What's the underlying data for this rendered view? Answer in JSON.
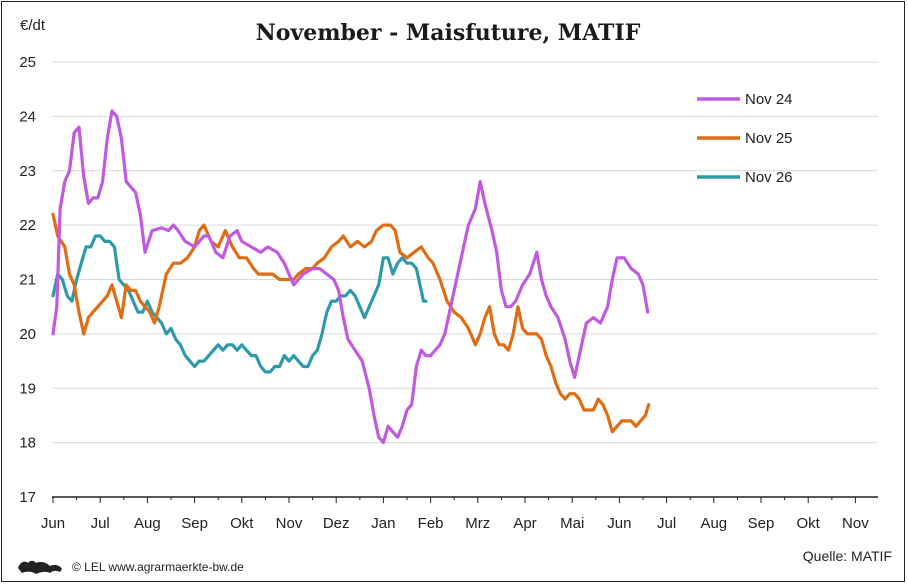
{
  "chart_data": {
    "type": "line",
    "title": "November - Maisfuture, MATIF",
    "unit_label": "€/dt",
    "ylim": [
      17,
      25
    ],
    "y_ticks": [
      17,
      18,
      19,
      20,
      21,
      22,
      23,
      24,
      25
    ],
    "x_tick_labels": [
      "Jun",
      "Jul",
      "Aug",
      "Sep",
      "Okt",
      "Nov",
      "Dez",
      "Jan",
      "Feb",
      "Mrz",
      "Apr",
      "Mai",
      "Jun",
      "Jul",
      "Aug",
      "Sep",
      "Okt",
      "Nov"
    ],
    "grid": true,
    "legend_position": "top-right",
    "series": [
      {
        "name": "Nov 24",
        "color": "#c05ae0",
        "points": [
          [
            0,
            20.0
          ],
          [
            0.08,
            20.5
          ],
          [
            0.15,
            22.3
          ],
          [
            0.25,
            22.8
          ],
          [
            0.35,
            23.0
          ],
          [
            0.45,
            23.7
          ],
          [
            0.55,
            23.8
          ],
          [
            0.65,
            22.9
          ],
          [
            0.75,
            22.4
          ],
          [
            0.85,
            22.5
          ],
          [
            0.95,
            22.5
          ],
          [
            1.05,
            22.8
          ],
          [
            1.15,
            23.6
          ],
          [
            1.25,
            24.1
          ],
          [
            1.35,
            24.0
          ],
          [
            1.45,
            23.6
          ],
          [
            1.55,
            22.8
          ],
          [
            1.65,
            22.7
          ],
          [
            1.75,
            22.6
          ],
          [
            1.85,
            22.2
          ],
          [
            1.95,
            21.5
          ],
          [
            2.1,
            21.9
          ],
          [
            2.3,
            21.95
          ],
          [
            2.45,
            21.9
          ],
          [
            2.55,
            22.0
          ],
          [
            2.65,
            21.9
          ],
          [
            2.8,
            21.7
          ],
          [
            3.0,
            21.6
          ],
          [
            3.2,
            21.8
          ],
          [
            3.3,
            21.8
          ],
          [
            3.45,
            21.5
          ],
          [
            3.6,
            21.4
          ],
          [
            3.75,
            21.8
          ],
          [
            3.9,
            21.9
          ],
          [
            4.0,
            21.7
          ],
          [
            4.2,
            21.6
          ],
          [
            4.4,
            21.5
          ],
          [
            4.55,
            21.6
          ],
          [
            4.75,
            21.5
          ],
          [
            4.9,
            21.3
          ],
          [
            5.0,
            21.1
          ],
          [
            5.1,
            20.9
          ],
          [
            5.3,
            21.1
          ],
          [
            5.5,
            21.2
          ],
          [
            5.65,
            21.2
          ],
          [
            5.8,
            21.1
          ],
          [
            5.95,
            21.0
          ],
          [
            6.05,
            20.8
          ],
          [
            6.15,
            20.3
          ],
          [
            6.25,
            19.9
          ],
          [
            6.4,
            19.7
          ],
          [
            6.55,
            19.5
          ],
          [
            6.7,
            19.0
          ],
          [
            6.8,
            18.5
          ],
          [
            6.9,
            18.1
          ],
          [
            7.0,
            18.0
          ],
          [
            7.1,
            18.3
          ],
          [
            7.2,
            18.2
          ],
          [
            7.3,
            18.1
          ],
          [
            7.4,
            18.3
          ],
          [
            7.5,
            18.6
          ],
          [
            7.6,
            18.7
          ],
          [
            7.7,
            19.4
          ],
          [
            7.8,
            19.7
          ],
          [
            7.9,
            19.6
          ],
          [
            8.0,
            19.6
          ],
          [
            8.1,
            19.7
          ],
          [
            8.2,
            19.8
          ],
          [
            8.3,
            20.0
          ],
          [
            8.4,
            20.4
          ],
          [
            8.5,
            20.8
          ],
          [
            8.6,
            21.2
          ],
          [
            8.7,
            21.6
          ],
          [
            8.8,
            22.0
          ],
          [
            8.95,
            22.3
          ],
          [
            9.05,
            22.8
          ],
          [
            9.15,
            22.4
          ],
          [
            9.3,
            21.9
          ],
          [
            9.4,
            21.5
          ],
          [
            9.5,
            20.8
          ],
          [
            9.6,
            20.5
          ],
          [
            9.7,
            20.5
          ],
          [
            9.8,
            20.6
          ],
          [
            9.95,
            20.9
          ],
          [
            10.1,
            21.1
          ],
          [
            10.25,
            21.5
          ],
          [
            10.35,
            21.0
          ],
          [
            10.45,
            20.7
          ],
          [
            10.55,
            20.5
          ],
          [
            10.7,
            20.3
          ],
          [
            10.85,
            19.9
          ],
          [
            10.95,
            19.5
          ],
          [
            11.05,
            19.2
          ],
          [
            11.2,
            19.8
          ],
          [
            11.3,
            20.2
          ],
          [
            11.45,
            20.3
          ],
          [
            11.6,
            20.2
          ],
          [
            11.75,
            20.5
          ],
          [
            11.85,
            21.0
          ],
          [
            11.95,
            21.4
          ],
          [
            12.1,
            21.4
          ],
          [
            12.25,
            21.2
          ],
          [
            12.4,
            21.1
          ],
          [
            12.5,
            20.9
          ],
          [
            12.6,
            20.4
          ]
        ]
      },
      {
        "name": "Nov 25",
        "color": "#e06c14",
        "points": [
          [
            0,
            22.2
          ],
          [
            0.1,
            21.8
          ],
          [
            0.25,
            21.6
          ],
          [
            0.35,
            21.1
          ],
          [
            0.45,
            20.9
          ],
          [
            0.55,
            20.4
          ],
          [
            0.65,
            20.0
          ],
          [
            0.75,
            20.3
          ],
          [
            0.85,
            20.4
          ],
          [
            0.95,
            20.5
          ],
          [
            1.05,
            20.6
          ],
          [
            1.15,
            20.7
          ],
          [
            1.25,
            20.9
          ],
          [
            1.35,
            20.6
          ],
          [
            1.45,
            20.3
          ],
          [
            1.55,
            20.9
          ],
          [
            1.65,
            20.8
          ],
          [
            1.75,
            20.8
          ],
          [
            1.85,
            20.6
          ],
          [
            1.95,
            20.5
          ],
          [
            2.05,
            20.4
          ],
          [
            2.15,
            20.2
          ],
          [
            2.25,
            20.5
          ],
          [
            2.4,
            21.1
          ],
          [
            2.55,
            21.3
          ],
          [
            2.7,
            21.3
          ],
          [
            2.85,
            21.4
          ],
          [
            3.0,
            21.6
          ],
          [
            3.1,
            21.9
          ],
          [
            3.2,
            22.0
          ],
          [
            3.35,
            21.7
          ],
          [
            3.5,
            21.6
          ],
          [
            3.65,
            21.9
          ],
          [
            3.8,
            21.6
          ],
          [
            3.95,
            21.4
          ],
          [
            4.1,
            21.4
          ],
          [
            4.25,
            21.2
          ],
          [
            4.35,
            21.1
          ],
          [
            4.5,
            21.1
          ],
          [
            4.65,
            21.1
          ],
          [
            4.8,
            21.0
          ],
          [
            4.95,
            21.0
          ],
          [
            5.1,
            21.0
          ],
          [
            5.2,
            21.1
          ],
          [
            5.35,
            21.2
          ],
          [
            5.5,
            21.2
          ],
          [
            5.6,
            21.3
          ],
          [
            5.75,
            21.4
          ],
          [
            5.9,
            21.6
          ],
          [
            6.05,
            21.7
          ],
          [
            6.15,
            21.8
          ],
          [
            6.3,
            21.6
          ],
          [
            6.45,
            21.7
          ],
          [
            6.6,
            21.6
          ],
          [
            6.75,
            21.7
          ],
          [
            6.85,
            21.9
          ],
          [
            7.0,
            22.0
          ],
          [
            7.15,
            22.0
          ],
          [
            7.25,
            21.9
          ],
          [
            7.35,
            21.5
          ],
          [
            7.5,
            21.4
          ],
          [
            7.65,
            21.5
          ],
          [
            7.8,
            21.6
          ],
          [
            7.95,
            21.4
          ],
          [
            8.05,
            21.3
          ],
          [
            8.2,
            21.0
          ],
          [
            8.35,
            20.6
          ],
          [
            8.5,
            20.4
          ],
          [
            8.65,
            20.3
          ],
          [
            8.8,
            20.1
          ],
          [
            8.95,
            19.8
          ],
          [
            9.05,
            20.0
          ],
          [
            9.15,
            20.3
          ],
          [
            9.25,
            20.5
          ],
          [
            9.35,
            20.0
          ],
          [
            9.45,
            19.8
          ],
          [
            9.55,
            19.8
          ],
          [
            9.65,
            19.7
          ],
          [
            9.75,
            20.0
          ],
          [
            9.85,
            20.5
          ],
          [
            9.95,
            20.1
          ],
          [
            10.05,
            20.0
          ],
          [
            10.15,
            20.0
          ],
          [
            10.25,
            20.0
          ],
          [
            10.35,
            19.9
          ],
          [
            10.45,
            19.6
          ],
          [
            10.55,
            19.4
          ],
          [
            10.65,
            19.1
          ],
          [
            10.75,
            18.9
          ],
          [
            10.85,
            18.8
          ],
          [
            10.95,
            18.9
          ],
          [
            11.05,
            18.9
          ],
          [
            11.15,
            18.8
          ],
          [
            11.25,
            18.6
          ],
          [
            11.35,
            18.6
          ],
          [
            11.45,
            18.6
          ],
          [
            11.55,
            18.8
          ],
          [
            11.65,
            18.7
          ],
          [
            11.75,
            18.5
          ],
          [
            11.85,
            18.2
          ],
          [
            11.95,
            18.3
          ],
          [
            12.05,
            18.4
          ],
          [
            12.15,
            18.4
          ],
          [
            12.25,
            18.4
          ],
          [
            12.35,
            18.3
          ],
          [
            12.45,
            18.4
          ],
          [
            12.55,
            18.5
          ],
          [
            12.62,
            18.7
          ]
        ]
      },
      {
        "name": "Nov 26",
        "color": "#2e9aa8",
        "points": [
          [
            0,
            20.7
          ],
          [
            0.1,
            21.1
          ],
          [
            0.2,
            21.0
          ],
          [
            0.3,
            20.7
          ],
          [
            0.4,
            20.6
          ],
          [
            0.5,
            21.0
          ],
          [
            0.6,
            21.3
          ],
          [
            0.7,
            21.6
          ],
          [
            0.8,
            21.6
          ],
          [
            0.9,
            21.8
          ],
          [
            1.0,
            21.8
          ],
          [
            1.1,
            21.7
          ],
          [
            1.2,
            21.7
          ],
          [
            1.3,
            21.6
          ],
          [
            1.4,
            21.0
          ],
          [
            1.5,
            20.9
          ],
          [
            1.6,
            20.8
          ],
          [
            1.7,
            20.6
          ],
          [
            1.8,
            20.4
          ],
          [
            1.9,
            20.4
          ],
          [
            2.0,
            20.6
          ],
          [
            2.1,
            20.4
          ],
          [
            2.2,
            20.3
          ],
          [
            2.3,
            20.2
          ],
          [
            2.4,
            20.0
          ],
          [
            2.5,
            20.1
          ],
          [
            2.6,
            19.9
          ],
          [
            2.7,
            19.8
          ],
          [
            2.8,
            19.6
          ],
          [
            2.9,
            19.5
          ],
          [
            3.0,
            19.4
          ],
          [
            3.1,
            19.5
          ],
          [
            3.2,
            19.5
          ],
          [
            3.3,
            19.6
          ],
          [
            3.4,
            19.7
          ],
          [
            3.5,
            19.8
          ],
          [
            3.6,
            19.7
          ],
          [
            3.7,
            19.8
          ],
          [
            3.8,
            19.8
          ],
          [
            3.9,
            19.7
          ],
          [
            4.0,
            19.8
          ],
          [
            4.1,
            19.7
          ],
          [
            4.2,
            19.6
          ],
          [
            4.3,
            19.6
          ],
          [
            4.4,
            19.4
          ],
          [
            4.5,
            19.3
          ],
          [
            4.6,
            19.3
          ],
          [
            4.7,
            19.4
          ],
          [
            4.8,
            19.4
          ],
          [
            4.9,
            19.6
          ],
          [
            5.0,
            19.5
          ],
          [
            5.1,
            19.6
          ],
          [
            5.2,
            19.5
          ],
          [
            5.3,
            19.4
          ],
          [
            5.4,
            19.4
          ],
          [
            5.5,
            19.6
          ],
          [
            5.6,
            19.7
          ],
          [
            5.7,
            20.0
          ],
          [
            5.8,
            20.4
          ],
          [
            5.9,
            20.6
          ],
          [
            6.0,
            20.6
          ],
          [
            6.1,
            20.7
          ],
          [
            6.2,
            20.7
          ],
          [
            6.3,
            20.8
          ],
          [
            6.4,
            20.7
          ],
          [
            6.5,
            20.5
          ],
          [
            6.6,
            20.3
          ],
          [
            6.7,
            20.5
          ],
          [
            6.8,
            20.7
          ],
          [
            6.9,
            20.9
          ],
          [
            7.0,
            21.4
          ],
          [
            7.1,
            21.4
          ],
          [
            7.2,
            21.1
          ],
          [
            7.3,
            21.3
          ],
          [
            7.4,
            21.4
          ],
          [
            7.5,
            21.3
          ],
          [
            7.6,
            21.3
          ],
          [
            7.7,
            21.2
          ],
          [
            7.8,
            20.8
          ],
          [
            7.85,
            20.6
          ],
          [
            7.9,
            20.6
          ]
        ]
      }
    ]
  },
  "footer": {
    "copyright": "© LEL www.agrarmaerkte-bw.de",
    "source": "Quelle: MATIF",
    "logo_icon": "lion-coat-of-arms-icon"
  }
}
